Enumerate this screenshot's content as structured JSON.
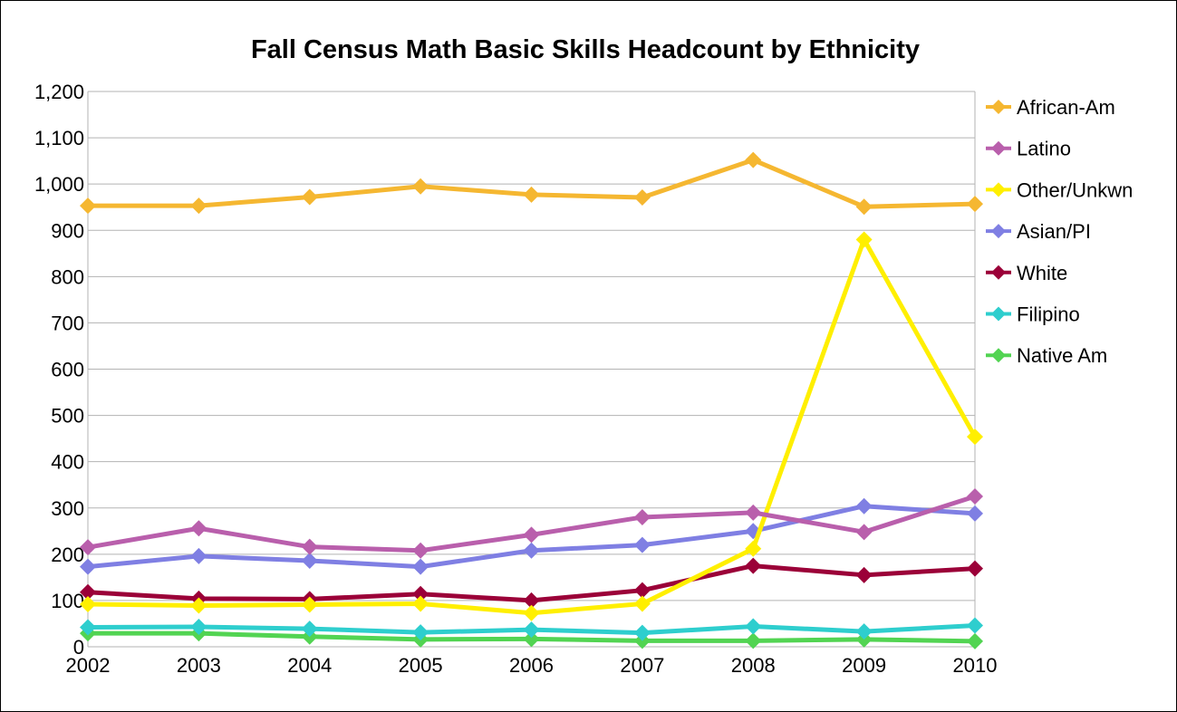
{
  "chart_data": {
    "type": "line",
    "title": "Fall Census Math Basic Skills Headcount by Ethnicity",
    "xlabel": "",
    "ylabel": "",
    "categories": [
      "2002",
      "2003",
      "2004",
      "2005",
      "2006",
      "2007",
      "2008",
      "2009",
      "2010"
    ],
    "ylim": [
      0,
      1200
    ],
    "yticks": [
      "0",
      "100",
      "200",
      "300",
      "400",
      "500",
      "600",
      "700",
      "800",
      "900",
      "1,000",
      "1,100",
      "1,200"
    ],
    "grid": true,
    "legend_position": "right",
    "series": [
      {
        "name": "African-Am",
        "color": "#F5B731",
        "values": [
          953,
          953,
          972,
          995,
          977,
          971,
          1052,
          951,
          957
        ]
      },
      {
        "name": "Latino",
        "color": "#B95FAC",
        "values": [
          215,
          256,
          216,
          208,
          242,
          280,
          290,
          248,
          325
        ]
      },
      {
        "name": "Other/Unkwn",
        "color": "#FFEF00",
        "values": [
          92,
          89,
          91,
          93,
          73,
          93,
          212,
          880,
          454
        ]
      },
      {
        "name": "Asian/PI",
        "color": "#7F7FE3",
        "values": [
          173,
          196,
          186,
          173,
          208,
          220,
          250,
          304,
          288
        ]
      },
      {
        "name": "White",
        "color": "#9B0038",
        "values": [
          118,
          104,
          103,
          114,
          100,
          122,
          175,
          155,
          169
        ]
      },
      {
        "name": "Filipino",
        "color": "#2ECECE",
        "values": [
          42,
          43,
          39,
          31,
          37,
          30,
          44,
          33,
          46
        ]
      },
      {
        "name": "Native Am",
        "color": "#52D452",
        "values": [
          29,
          29,
          22,
          16,
          17,
          13,
          13,
          16,
          12
        ]
      }
    ]
  }
}
